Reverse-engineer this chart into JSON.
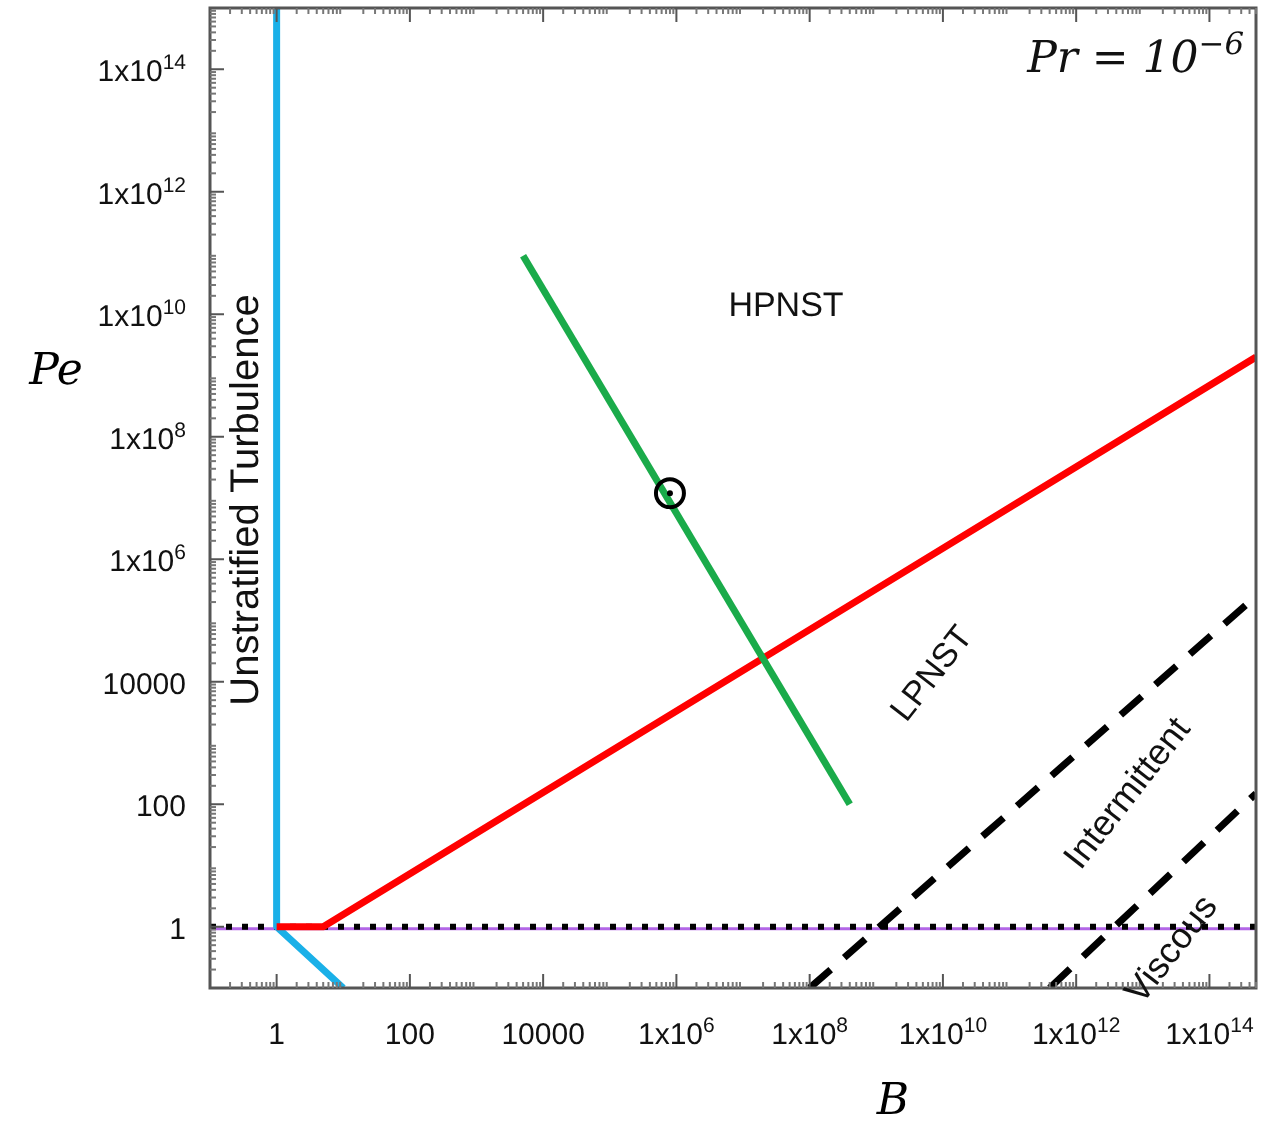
{
  "chart_data": {
    "type": "line",
    "log": "xy",
    "xlabel": "B",
    "ylabel": "Pe",
    "xlim": [
      0.1,
      500000000000000.0
    ],
    "ylim": [
      0.1,
      1000000000000000.0
    ],
    "xticks": [
      1,
      100,
      10000,
      {
        "value": 1000000.0,
        "label": "1x10$^{6}$"
      },
      {
        "value": 100000000.0,
        "label": "1x10$^{8}$"
      },
      {
        "value": 10000000000.0,
        "label": "1x10$^{10}$"
      },
      {
        "value": 1000000000000.0,
        "label": "1x10$^{12}$"
      },
      {
        "value": 100000000000000.0,
        "label": "1x10$^{14}$"
      }
    ],
    "yticks": [
      1,
      100,
      10000,
      {
        "value": 1000000.0,
        "label": "1x10$^{6}$"
      },
      {
        "value": 100000000.0,
        "label": "1x10$^{8}$"
      },
      {
        "value": 10000000000.0,
        "label": "1x10$^{10}$"
      },
      {
        "value": 1000000000000.0,
        "label": "1x10$^{12}$"
      },
      {
        "value": 100000000000000.0,
        "label": "1x10$^{14}$"
      }
    ],
    "series": [
      {
        "color": "#1ab0e8",
        "x": [
          1,
          1,
          10
        ],
        "values": [
          1000000000000000.0,
          1,
          0.1
        ]
      },
      {
        "color": "#ff0000",
        "x": [
          1,
          5,
          500000000000000.0
        ],
        "values": [
          1,
          1,
          2000000000.0
        ]
      },
      {
        "color": "#1aab4a",
        "x": [
          5000,
          400000000.0
        ],
        "values": [
          90000000000.0,
          100
        ]
      },
      {
        "color": "#000000",
        "line_style": "dashed",
        "x": [
          100000000.0,
          500000000000000.0
        ],
        "values": [
          0.1,
          250000.0
        ]
      },
      {
        "color": "#000000",
        "line_style": "dashed",
        "x": [
          400000000000.0,
          500000000000000.0
        ],
        "values": [
          0.1,
          150
        ]
      },
      {
        "type": "scatter",
        "marker": "circle",
        "color": "#000000",
        "x": [
          800000.0
        ],
        "values": [
          12000000.0
        ]
      }
    ],
    "ref_lines": [
      {
        "axis": "y",
        "value": 1,
        "color": "#b266e6",
        "line_style": "solid"
      },
      {
        "axis": "y",
        "value": 1,
        "color": "#000000",
        "line_style": "dotted"
      }
    ],
    "annotations": [
      "Pr = 10$^{−6}$",
      "HPNST",
      "LPNST",
      "Unstratified Turbulence",
      "Intermittent",
      "Viscous"
    ]
  }
}
